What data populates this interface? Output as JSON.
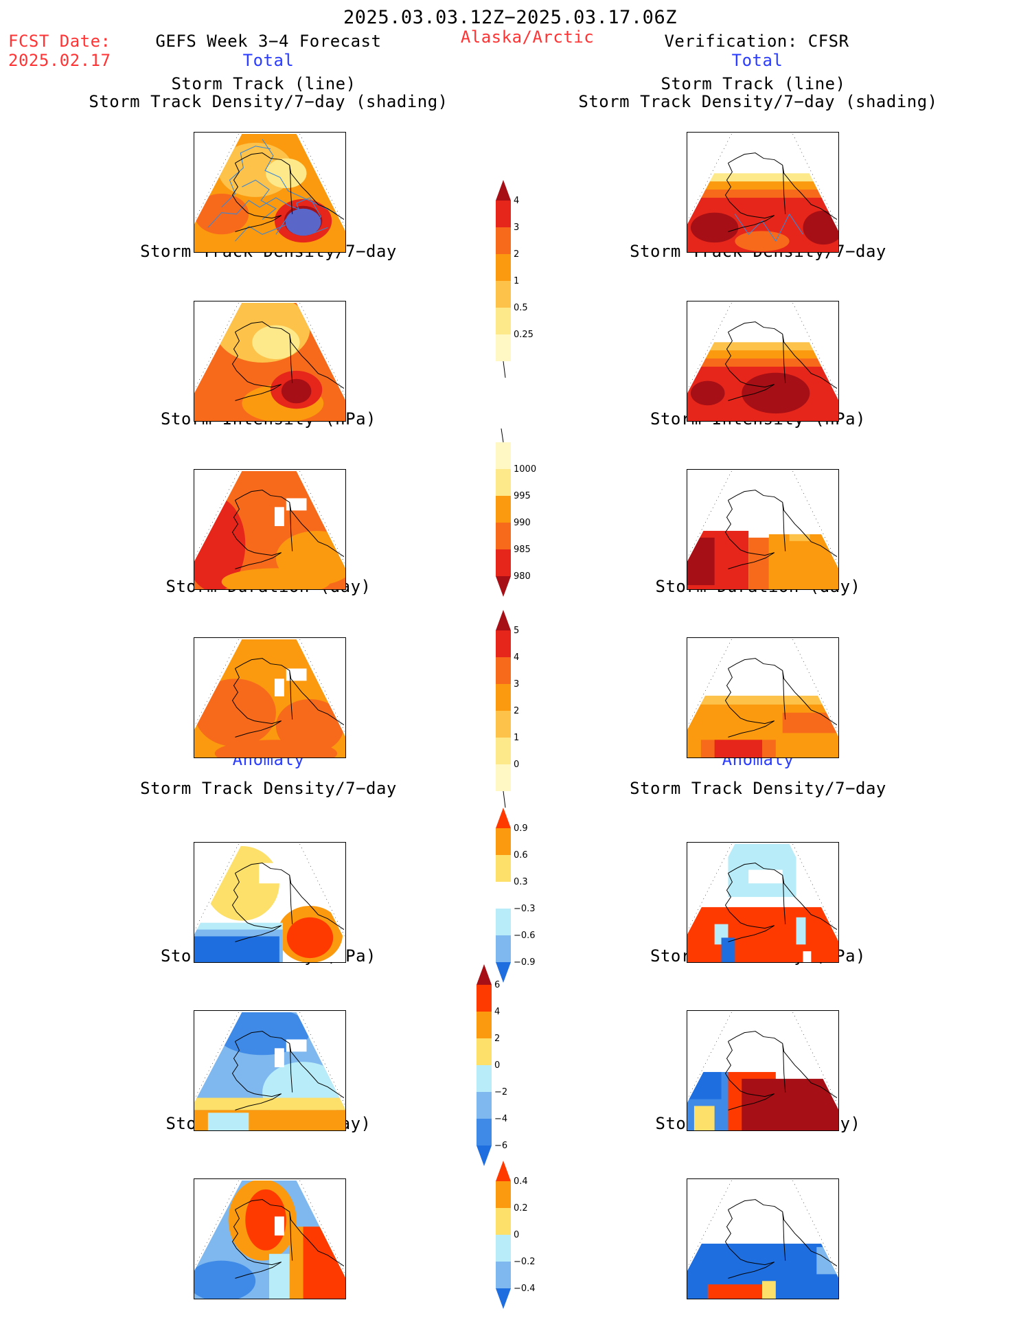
{
  "header": {
    "period": "2025.03.03.12Z−2025.03.17.06Z",
    "fcst_label": "FCST Date:",
    "fcst_date": "2025.02.17",
    "model": "GEFS Week 3−4 Forecast",
    "region": "Alaska/Arctic",
    "verification": "Verification: CFSR"
  },
  "sections": {
    "left_total": "Total",
    "right_total": "Total",
    "left_anomaly": "Anomaly",
    "right_anomaly": "Anomaly"
  },
  "panel_titles": {
    "track_line": "Storm Track (line)",
    "track_shading": "Storm Track Density/7−day (shading)",
    "density": "Storm Track Density/7−day",
    "intensity": "Storm Intensity (hPa)",
    "duration": "Storm Duration (day)"
  },
  "colorbars": {
    "density": {
      "labels": [
        "4",
        "3",
        "2",
        "1",
        "0.5",
        "0.25"
      ],
      "colors": [
        "#a50f15",
        "#e6261a",
        "#f76a1c",
        "#fb9a0e",
        "#fcc24a",
        "#fde88a",
        "#fff8c4"
      ]
    },
    "intensity": {
      "labels": [
        "1000",
        "995",
        "990",
        "985",
        "980"
      ],
      "colors": [
        "#fff8c4",
        "#fde88a",
        "#fb9a0e",
        "#f76a1c",
        "#e6261a",
        "#a50f15"
      ]
    },
    "duration": {
      "labels": [
        "5",
        "4",
        "3",
        "2",
        "1",
        "0"
      ],
      "colors": [
        "#a50f15",
        "#e6261a",
        "#f76a1c",
        "#fb9a0e",
        "#fcc24a",
        "#fde88a",
        "#fff8c4"
      ]
    },
    "density_anom": {
      "labels": [
        "0.9",
        "0.6",
        "0.3",
        "−0.3",
        "−0.6",
        "−0.9"
      ],
      "colors": [
        "#ff3a00",
        "#fb9a0e",
        "#fde06a",
        "#ffffff",
        "#b8ecf8",
        "#7fb8ee",
        "#1f6ee0"
      ]
    },
    "intensity_anom": {
      "labels": [
        "6",
        "4",
        "2",
        "0",
        "−2",
        "−4",
        "−6"
      ],
      "colors": [
        "#a50f15",
        "#ff3a00",
        "#fb9a0e",
        "#fde06a",
        "#b8ecf8",
        "#7fb8ee",
        "#3f8ae6",
        "#1f6ee0"
      ]
    },
    "duration_anom": {
      "labels": [
        "0.4",
        "0.2",
        "0",
        "−0.2",
        "−0.4"
      ],
      "colors": [
        "#ff3a00",
        "#fb9a0e",
        "#fde06a",
        "#b8ecf8",
        "#7fb8ee",
        "#1f6ee0"
      ]
    }
  },
  "chart_data": [
    {
      "type": "heatmap",
      "panel": "GEFS forecast total",
      "title": "Storm Track (line) / Storm Track Density/7−day (shading)",
      "dominant_levels": [
        "1",
        "2",
        "3",
        "4"
      ],
      "overlay": "storm tracks (blue lines)"
    },
    {
      "type": "heatmap",
      "panel": "CFSR verification total",
      "title": "Storm Track (line) / Storm Track Density/7−day (shading)",
      "dominant_levels": [
        "2",
        "3",
        "4"
      ],
      "overlay": "storm tracks (blue lines)"
    },
    {
      "type": "heatmap",
      "panel": "GEFS forecast total",
      "title": "Storm Track Density/7−day",
      "dominant_levels": [
        "0.5",
        "1",
        "2",
        "3",
        "4"
      ]
    },
    {
      "type": "heatmap",
      "panel": "CFSR verification total",
      "title": "Storm Track Density/7−day",
      "dominant_levels": [
        "1",
        "2",
        "3",
        "4"
      ]
    },
    {
      "type": "heatmap",
      "panel": "GEFS forecast total",
      "title": "Storm Intensity (hPa)",
      "dominant_levels": [
        "985",
        "990",
        "995"
      ]
    },
    {
      "type": "heatmap",
      "panel": "CFSR verification total",
      "title": "Storm Intensity (hPa)",
      "dominant_levels": [
        "980",
        "985",
        "995"
      ]
    },
    {
      "type": "heatmap",
      "panel": "GEFS forecast total",
      "title": "Storm Duration (day)",
      "dominant_levels": [
        "2",
        "3"
      ]
    },
    {
      "type": "heatmap",
      "panel": "CFSR verification total",
      "title": "Storm Duration (day)",
      "dominant_levels": [
        "2",
        "3",
        "4"
      ]
    },
    {
      "type": "heatmap",
      "panel": "GEFS forecast anomaly",
      "title": "Storm Track Density/7−day",
      "dominant_levels": [
        "−0.9",
        "−0.6",
        "0.3",
        "0.9"
      ]
    },
    {
      "type": "heatmap",
      "panel": "CFSR verification anomaly",
      "title": "Storm Track Density/7−day",
      "dominant_levels": [
        "−0.3",
        "0.9"
      ]
    },
    {
      "type": "heatmap",
      "panel": "GEFS forecast anomaly",
      "title": "Storm Intensity (hPa)",
      "dominant_levels": [
        "−4",
        "−2",
        "2"
      ]
    },
    {
      "type": "heatmap",
      "panel": "CFSR verification anomaly",
      "title": "Storm Intensity (hPa)",
      "dominant_levels": [
        "−6",
        "6"
      ]
    },
    {
      "type": "heatmap",
      "panel": "GEFS forecast anomaly",
      "title": "Storm Duration (day)",
      "dominant_levels": [
        "−0.4",
        "−0.2",
        "0.2",
        "0.4"
      ]
    },
    {
      "type": "heatmap",
      "panel": "CFSR verification anomaly",
      "title": "Storm Duration (day)",
      "dominant_levels": [
        "−0.4",
        "0.2",
        "0.4"
      ]
    }
  ]
}
